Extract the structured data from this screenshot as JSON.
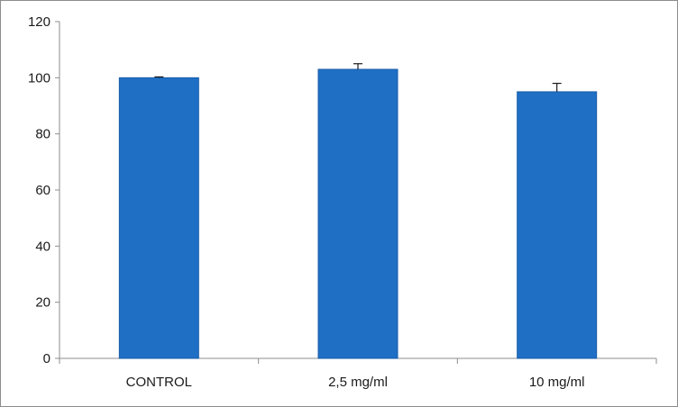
{
  "chart_data": {
    "type": "bar",
    "categories": [
      "CONTROL",
      "2,5 mg/ml",
      "10 mg/ml"
    ],
    "values": [
      100,
      103,
      95
    ],
    "error_bars": [
      0.3,
      2,
      3
    ],
    "ylim": [
      0,
      120
    ],
    "yticks": [
      "0",
      "20",
      "40",
      "60",
      "80",
      "100",
      "120"
    ],
    "title": "",
    "xlabel": "",
    "ylabel": "",
    "grid": false,
    "legend": "none",
    "bar_color": "#1f6fc5",
    "bar_edge_color": "#1a5ea8"
  }
}
